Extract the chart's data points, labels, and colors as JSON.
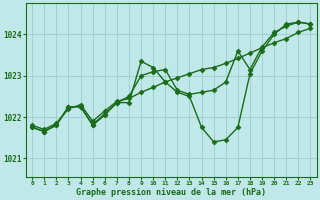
{
  "title": "Graphe pression niveau de la mer (hPa)",
  "bg_color": "#c0e8e8",
  "grid_color": "#a0d0d0",
  "line_color": "#1a6b1a",
  "marker": "D",
  "markersize": 2.5,
  "linewidth": 1.0,
  "ylabel_ticks": [
    1021,
    1022,
    1023,
    1024
  ],
  "xlim": [
    -0.5,
    23.5
  ],
  "ylim": [
    1020.55,
    1024.75
  ],
  "series": [
    [
      1021.75,
      1021.65,
      1021.8,
      1022.25,
      1022.25,
      1021.8,
      1022.05,
      1022.35,
      1022.35,
      1023.35,
      1023.2,
      1022.85,
      1022.6,
      1022.5,
      1021.75,
      1021.4,
      1021.45,
      1021.75,
      1023.05,
      1023.6,
      1024.0,
      1024.25,
      1024.3,
      1024.25
    ],
    [
      1021.75,
      1021.65,
      1021.82,
      1022.25,
      1022.25,
      1021.82,
      1022.08,
      1022.35,
      1022.5,
      1023.0,
      1023.1,
      1023.15,
      1022.65,
      1022.55,
      1022.6,
      1022.65,
      1022.85,
      1023.6,
      1023.15,
      1023.7,
      1024.05,
      1024.2,
      1024.3,
      1024.25
    ],
    [
      1021.8,
      1021.7,
      1021.85,
      1022.2,
      1022.3,
      1021.9,
      1022.15,
      1022.38,
      1022.45,
      1022.6,
      1022.72,
      1022.85,
      1022.95,
      1023.05,
      1023.15,
      1023.2,
      1023.3,
      1023.42,
      1023.55,
      1023.68,
      1023.8,
      1023.9,
      1024.05,
      1024.15
    ]
  ],
  "xtick_labels": [
    "0",
    "1",
    "2",
    "3",
    "4",
    "5",
    "6",
    "7",
    "8",
    "9",
    "10",
    "11",
    "12",
    "13",
    "14",
    "15",
    "16",
    "17",
    "18",
    "19",
    "20",
    "21",
    "22",
    "23"
  ],
  "fig_width": 3.2,
  "fig_height": 2.0,
  "dpi": 100
}
